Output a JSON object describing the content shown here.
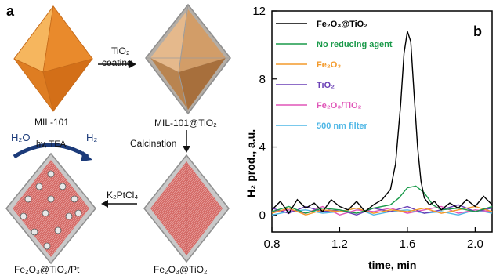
{
  "panel_a": {
    "letter": "a",
    "arrow1_label_line1": "TiO₂",
    "arrow1_label_line2": "coating",
    "label_mil101": "MIL-101",
    "label_mil101_tio2": "MIL-101@TiO₂",
    "arrow2_label": "Calcination",
    "arrow3_label": "K₂PtCl₄",
    "label_fe2o3_tio2": "Fe₂O₃@TiO₂",
    "label_fe2o3_tio2_pt": "Fe₂O₃@TiO₂/Pt",
    "h2o": "H₂O",
    "h2": "H₂",
    "hv_tea": "hv, TEA",
    "colors": {
      "mil101": "#e9892f",
      "shell": "#a9a9a9",
      "core_red": "#c0504d",
      "arrow_blue": "#1c3b7a"
    }
  },
  "panel_b": {
    "letter": "b",
    "chart_data": {
      "type": "line",
      "xlabel": "time, min",
      "ylabel": "H₂ prod., a.u.",
      "xlim": [
        0.8,
        2.1
      ],
      "ylim": [
        -1,
        12
      ],
      "xticks": [
        0.8,
        1.2,
        1.6,
        2.0
      ],
      "yticks": [
        0,
        4,
        8,
        12
      ],
      "grid": false,
      "legend_position": "top-left",
      "series": [
        {
          "name": "Fe₂O₃@TiO₂",
          "color": "#000000",
          "x": [
            0.8,
            0.85,
            0.9,
            0.95,
            1.0,
            1.05,
            1.1,
            1.15,
            1.2,
            1.25,
            1.3,
            1.35,
            1.4,
            1.45,
            1.5,
            1.53,
            1.56,
            1.58,
            1.6,
            1.62,
            1.64,
            1.66,
            1.68,
            1.7,
            1.73,
            1.76,
            1.8,
            1.85,
            1.9,
            1.95,
            2.0,
            2.05,
            2.1
          ],
          "y": [
            0.3,
            0.8,
            0.1,
            0.9,
            0.4,
            0.7,
            0.2,
            0.9,
            0.5,
            0.3,
            0.8,
            0.2,
            0.6,
            0.9,
            1.5,
            3.0,
            6.5,
            9.5,
            10.8,
            10.2,
            7.0,
            4.0,
            2.0,
            1.0,
            0.6,
            0.8,
            0.3,
            0.7,
            0.4,
            0.9,
            0.5,
            1.1,
            0.6
          ]
        },
        {
          "name": "No reducing agent",
          "color": "#1a9a4a",
          "x": [
            0.8,
            0.9,
            1.0,
            1.1,
            1.2,
            1.3,
            1.4,
            1.5,
            1.55,
            1.6,
            1.65,
            1.7,
            1.75,
            1.8,
            1.9,
            2.0,
            2.1
          ],
          "y": [
            0.2,
            0.5,
            0.1,
            0.4,
            0.3,
            0.1,
            0.4,
            0.6,
            1.0,
            1.6,
            1.7,
            1.3,
            0.6,
            0.3,
            0.4,
            0.2,
            0.5
          ]
        },
        {
          "name": "Fe₂O₃",
          "color": "#f39a2b",
          "x": [
            0.8,
            0.9,
            1.0,
            1.1,
            1.2,
            1.3,
            1.4,
            1.5,
            1.6,
            1.7,
            1.8,
            1.9,
            2.0,
            2.1
          ],
          "y": [
            0.1,
            0.4,
            0.0,
            0.3,
            0.2,
            0.4,
            0.1,
            0.3,
            0.2,
            0.4,
            0.1,
            0.3,
            0.5,
            0.2
          ]
        },
        {
          "name": "TiO₂",
          "color": "#6a3fb5",
          "x": [
            0.8,
            0.9,
            1.0,
            1.1,
            1.2,
            1.3,
            1.4,
            1.5,
            1.6,
            1.7,
            1.8,
            1.9,
            2.0,
            2.1
          ],
          "y": [
            0.4,
            0.1,
            0.5,
            0.2,
            0.3,
            0.0,
            0.4,
            0.2,
            0.5,
            0.1,
            0.3,
            0.6,
            0.2,
            0.4
          ]
        },
        {
          "name": "Fe₂O₃/TiO₂",
          "color": "#e055b8",
          "x": [
            0.8,
            0.9,
            1.0,
            1.1,
            1.2,
            1.3,
            1.4,
            1.5,
            1.6,
            1.7,
            1.8,
            1.9,
            2.0,
            2.1
          ],
          "y": [
            0.2,
            0.3,
            0.1,
            0.5,
            0.0,
            0.3,
            0.2,
            0.4,
            0.1,
            0.3,
            0.5,
            0.1,
            0.3,
            0.2
          ]
        },
        {
          "name": "500 nm filter",
          "color": "#4fb7e6",
          "x": [
            0.8,
            0.9,
            1.0,
            1.1,
            1.2,
            1.3,
            1.4,
            1.5,
            1.6,
            1.7,
            1.8,
            1.9,
            2.0,
            2.1
          ],
          "y": [
            0.0,
            0.2,
            0.3,
            0.1,
            0.2,
            0.4,
            0.0,
            0.2,
            0.3,
            0.1,
            0.2,
            0.0,
            0.3,
            0.1
          ]
        }
      ]
    }
  }
}
